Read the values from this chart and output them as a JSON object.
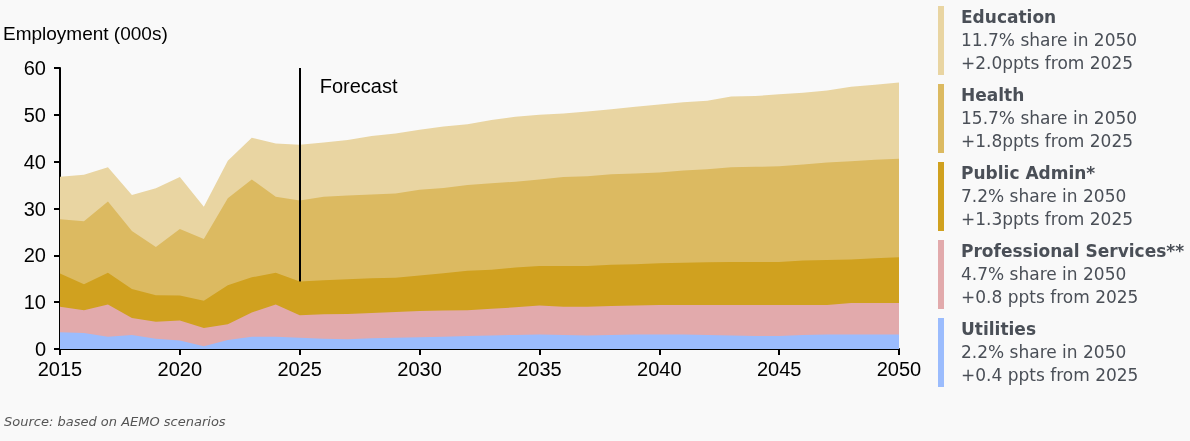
{
  "chart_data": {
    "type": "area",
    "stacked": true,
    "ylabel": "Employment (000s)",
    "x": [
      2015,
      2016,
      2017,
      2018,
      2019,
      2020,
      2021,
      2022,
      2023,
      2024,
      2025,
      2026,
      2027,
      2028,
      2029,
      2030,
      2031,
      2032,
      2033,
      2034,
      2035,
      2036,
      2037,
      2038,
      2039,
      2040,
      2041,
      2042,
      2043,
      2044,
      2045,
      2046,
      2047,
      2048,
      2049,
      2050
    ],
    "xlim": [
      2015,
      2050
    ],
    "xticks": [
      2015,
      2020,
      2025,
      2030,
      2035,
      2040,
      2045,
      2050
    ],
    "ylim": [
      0,
      60
    ],
    "yticks": [
      0,
      10,
      20,
      30,
      40,
      50,
      60
    ],
    "grid": false,
    "legend": "right",
    "series": [
      {
        "name": "Utilities",
        "color": "#9bbcfd",
        "values": [
          3.6,
          3.4,
          2.6,
          3.0,
          2.2,
          1.8,
          0.6,
          1.9,
          2.6,
          2.6,
          2.4,
          2.2,
          2.1,
          2.3,
          2.4,
          2.5,
          2.6,
          2.8,
          2.9,
          3.0,
          3.1,
          3.0,
          2.9,
          3.0,
          3.1,
          3.1,
          3.1,
          3.0,
          2.9,
          2.8,
          2.8,
          3.0,
          3.1,
          3.1,
          3.1,
          3.1
        ]
      },
      {
        "name": "Professional Services**",
        "color": "#e2aaac",
        "values": [
          5.4,
          4.9,
          6.9,
          3.6,
          3.6,
          4.3,
          3.9,
          3.4,
          5.2,
          6.9,
          4.8,
          5.2,
          5.4,
          5.4,
          5.5,
          5.6,
          5.6,
          5.5,
          5.7,
          5.9,
          6.2,
          6.0,
          6.1,
          6.2,
          6.2,
          6.3,
          6.3,
          6.4,
          6.5,
          6.6,
          6.6,
          6.4,
          6.3,
          6.7,
          6.7,
          6.7
        ]
      },
      {
        "name": "Public Admin*",
        "color": "#d0a11f",
        "values": [
          7.1,
          5.5,
          6.8,
          6.2,
          5.7,
          5.3,
          5.8,
          8.3,
          7.5,
          6.8,
          7.2,
          7.3,
          7.4,
          7.4,
          7.3,
          7.6,
          8.0,
          8.4,
          8.3,
          8.5,
          8.4,
          8.7,
          8.7,
          8.8,
          8.8,
          8.9,
          9.0,
          9.1,
          9.2,
          9.2,
          9.2,
          9.5,
          9.6,
          9.3,
          9.6,
          9.8
        ]
      },
      {
        "name": "Health",
        "color": "#dcba61",
        "values": [
          11.6,
          13.5,
          15.2,
          12.4,
          10.3,
          14.2,
          13.2,
          18.6,
          20.9,
          16.2,
          17.3,
          17.8,
          17.9,
          17.9,
          18.0,
          18.3,
          18.2,
          18.3,
          18.5,
          18.3,
          18.5,
          19.0,
          19.2,
          19.3,
          19.4,
          19.4,
          19.7,
          19.9,
          20.2,
          20.3,
          20.4,
          20.5,
          20.8,
          21.0,
          21.0,
          21.0
        ]
      },
      {
        "name": "Education",
        "color": "#e9d5a2",
        "values": [
          9.1,
          9.9,
          7.3,
          7.7,
          12.5,
          11.1,
          6.9,
          8.0,
          8.9,
          11.4,
          11.9,
          11.6,
          11.8,
          12.5,
          12.8,
          12.8,
          13.1,
          13.0,
          13.5,
          13.9,
          13.8,
          13.6,
          13.8,
          13.9,
          14.2,
          14.5,
          14.6,
          14.6,
          15.1,
          15.1,
          15.4,
          15.3,
          15.4,
          15.9,
          16.0,
          16.3
        ]
      }
    ],
    "ref_lines": [
      {
        "axis": "x",
        "value": 2025,
        "label": "Forecast",
        "color": "#000000"
      }
    ],
    "annotations": [
      "Source: based on AEMO scenarios",
      "2.2% share in 2050",
      "+0.4 ppts from 2025",
      "4.7% share in 2050",
      "+0.8 ppts from 2025",
      "7.2% share in 2050",
      "+1.3ppts from 2025",
      "15.7% share in 2050",
      "+1.8ppts from 2025",
      "11.7% share in 2050",
      "+2.0ppts from 2025"
    ]
  }
}
